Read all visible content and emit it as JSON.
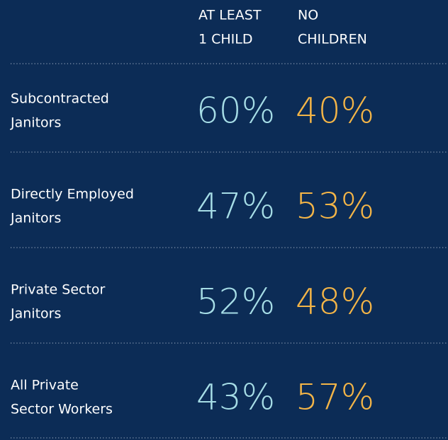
{
  "table": {
    "columns": [
      [
        "AT LEAST",
        "1 CHILD"
      ],
      [
        "NO",
        "CHILDREN"
      ]
    ],
    "rows": [
      {
        "label": [
          "Subcontracted",
          "Janitors"
        ],
        "cells": [
          "60%",
          "40%"
        ]
      },
      {
        "label": [
          "Directly Employed",
          "Janitors"
        ],
        "cells": [
          "47%",
          "53%"
        ]
      },
      {
        "label": [
          "Private Sector",
          "Janitors"
        ],
        "cells": [
          "52%",
          "48%"
        ]
      },
      {
        "label": [
          "All Private",
          "Sector Workers"
        ],
        "cells": [
          "43%",
          "57%"
        ]
      }
    ]
  }
}
